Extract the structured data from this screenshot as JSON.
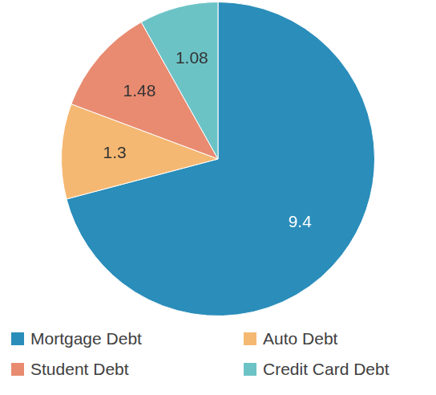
{
  "chart_data": {
    "type": "pie",
    "categories": [
      "Mortgage Debt",
      "Auto Debt",
      "Student Debt",
      "Credit Card Debt"
    ],
    "values": [
      9.4,
      1.3,
      1.48,
      1.08
    ],
    "colors": [
      "#2a8dba",
      "#f5b872",
      "#e88b71",
      "#6cc3c6"
    ],
    "legend": "bottom",
    "data_labels": true
  }
}
